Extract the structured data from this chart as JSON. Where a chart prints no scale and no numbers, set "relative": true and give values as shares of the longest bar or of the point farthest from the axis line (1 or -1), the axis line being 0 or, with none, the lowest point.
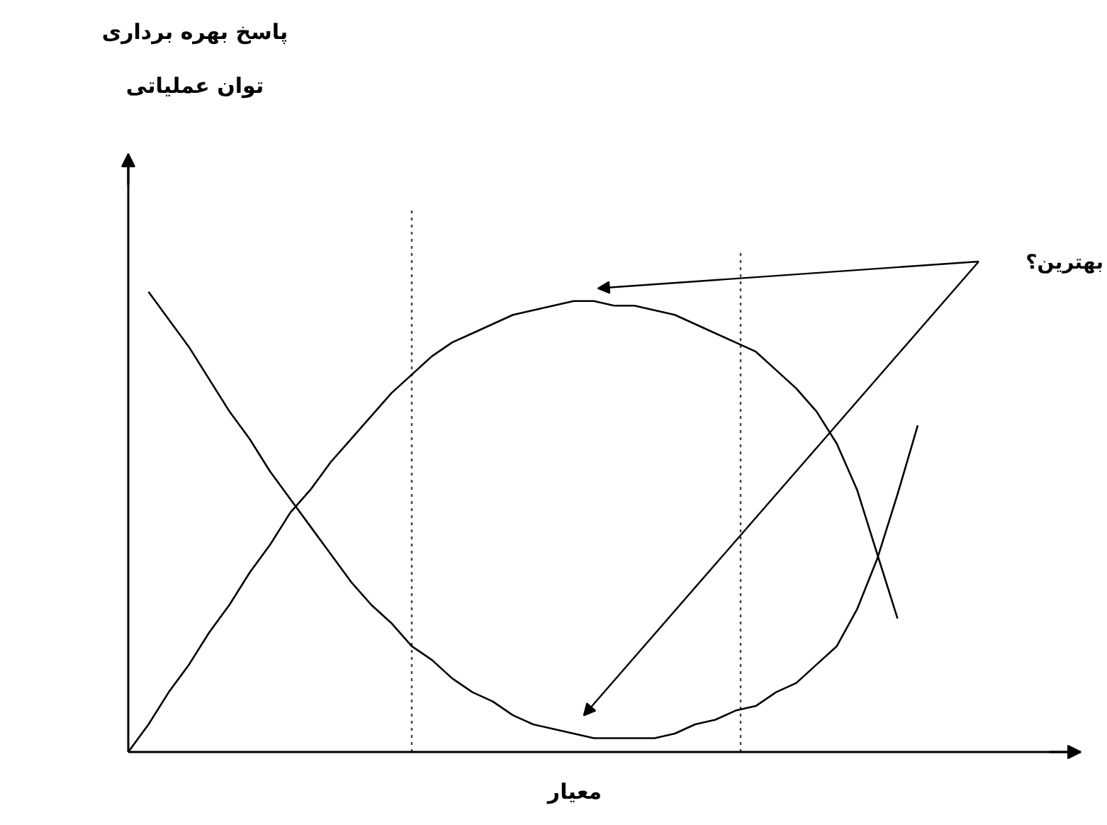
{
  "chart_data": {
    "type": "line",
    "relative": true,
    "line_style": "solid",
    "ylabel": "پاسخ بهره برداری\nتوان عملیاتی",
    "xlabel": "معیار",
    "categories": [
      null,
      null,
      null,
      null,
      null,
      null,
      null,
      null,
      null,
      null,
      null,
      null,
      null,
      null,
      null,
      null,
      null,
      null,
      null,
      null,
      null,
      null,
      null,
      null,
      null,
      null,
      null,
      null,
      null,
      null,
      null,
      null,
      null,
      null,
      null,
      null,
      null,
      null,
      null,
      null
    ],
    "series": [
      {
        "color": "#000000",
        "values": [
          0,
          0.06,
          0.13,
          0.19,
          0.26,
          0.32,
          0.39,
          0.45,
          0.52,
          0.57,
          0.63,
          0.68,
          0.73,
          0.78,
          0.82,
          0.86,
          0.89,
          0.91,
          0.93,
          0.95,
          0.96,
          0.97,
          0.98,
          0.98,
          0.97,
          0.97,
          0.96,
          0.95,
          0.93,
          0.91,
          0.89,
          0.87,
          0.83,
          0.79,
          0.74,
          0.67,
          0.57,
          0.43,
          0.29,
          null
        ]
      },
      {
        "color": "#000000",
        "values": [
          null,
          1,
          0.94,
          0.88,
          0.81,
          0.74,
          0.68,
          0.61,
          0.55,
          0.49,
          0.43,
          0.37,
          0.32,
          0.28,
          0.23,
          0.2,
          0.16,
          0.13,
          0.11,
          0.08,
          0.06,
          0.05,
          0.04,
          0.03,
          0.03,
          0.03,
          0.03,
          0.04,
          0.06,
          0.07,
          0.09,
          0.1,
          0.13,
          0.15,
          0.19,
          0.23,
          0.31,
          0.42,
          0.56,
          0.71
        ]
      }
    ],
    "annotations": [
      "بهترین؟"
    ]
  }
}
